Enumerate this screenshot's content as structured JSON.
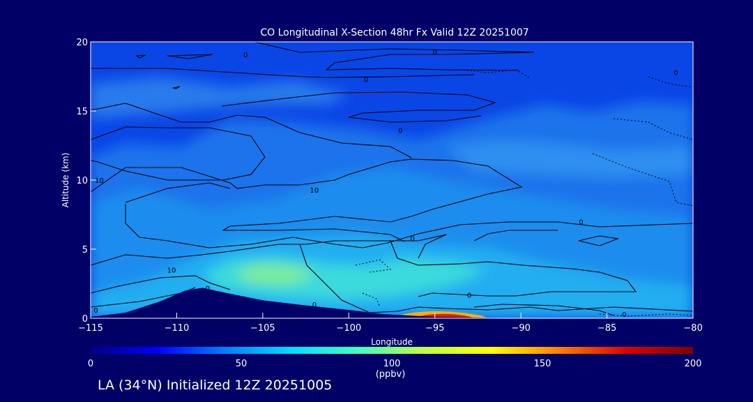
{
  "chart_data": {
    "type": "heatmap",
    "title": "CO Longitudinal X-Section 48hr  Fx Valid 12Z 20251007",
    "xlabel": "Longitude",
    "ylabel": "Altitude (km)",
    "xlim": [
      -115,
      -80
    ],
    "ylim": [
      0,
      20
    ],
    "x_ticks": [
      -115,
      -110,
      -105,
      -100,
      -95,
      -90,
      -85,
      -80
    ],
    "x_tick_labels": [
      "−115",
      "−110",
      "−105",
      "−100",
      "−95",
      "−90",
      "−85",
      "−80"
    ],
    "y_ticks": [
      0,
      5,
      10,
      15,
      20
    ],
    "y_tick_labels": [
      "0",
      "5",
      "10",
      "15",
      "20"
    ],
    "colorbar": {
      "min": 0,
      "max": 200,
      "ticks": [
        0,
        50,
        100,
        150,
        200
      ],
      "tick_labels": [
        "0",
        "50",
        "100",
        "150",
        "200"
      ],
      "units": "(ppbv)",
      "colors": [
        "#000080",
        "#0000ff",
        "#0080ff",
        "#00ddff",
        "#40ffc0",
        "#c0ff40",
        "#ffff00",
        "#ff8000",
        "#e00000",
        "#800000"
      ]
    },
    "contour_labels": [
      {
        "lon": -106.0,
        "alt": 19.1,
        "text": "0"
      },
      {
        "lon": -95.0,
        "alt": 19.3,
        "text": "0"
      },
      {
        "lon": -99.0,
        "alt": 17.3,
        "text": "0"
      },
      {
        "lon": -81.0,
        "alt": 17.8,
        "text": "0"
      },
      {
        "lon": -97.0,
        "alt": 13.6,
        "text": "0"
      },
      {
        "lon": -114.5,
        "alt": 10.0,
        "text": "10"
      },
      {
        "lon": -102.0,
        "alt": 9.3,
        "text": "10"
      },
      {
        "lon": -86.5,
        "alt": 7.0,
        "text": "0"
      },
      {
        "lon": -96.3,
        "alt": 5.8,
        "text": "0"
      },
      {
        "lon": -110.3,
        "alt": 3.5,
        "text": "10"
      },
      {
        "lon": -108.2,
        "alt": 2.2,
        "text": "0"
      },
      {
        "lon": -102.0,
        "alt": 1.0,
        "text": "0"
      },
      {
        "lon": -93.0,
        "alt": 1.7,
        "text": "0"
      },
      {
        "lon": -114.7,
        "alt": 0.6,
        "text": "0"
      },
      {
        "lon": -84.0,
        "alt": 0.3,
        "text": "0"
      }
    ],
    "terrain": [
      [
        -115,
        0.1
      ],
      [
        -113,
        0.4
      ],
      [
        -111,
        1.2
      ],
      [
        -109.5,
        2.0
      ],
      [
        -108.5,
        2.2
      ],
      [
        -107,
        1.8
      ],
      [
        -105,
        1.3
      ],
      [
        -103,
        1.0
      ],
      [
        -100,
        0.6
      ],
      [
        -98,
        0.3
      ],
      [
        -95,
        0.1
      ],
      [
        -90,
        0.0
      ],
      [
        -85,
        0.0
      ],
      [
        -80,
        0.0
      ]
    ]
  },
  "footer": "LA (34°N) Initialized 12Z 20251005"
}
